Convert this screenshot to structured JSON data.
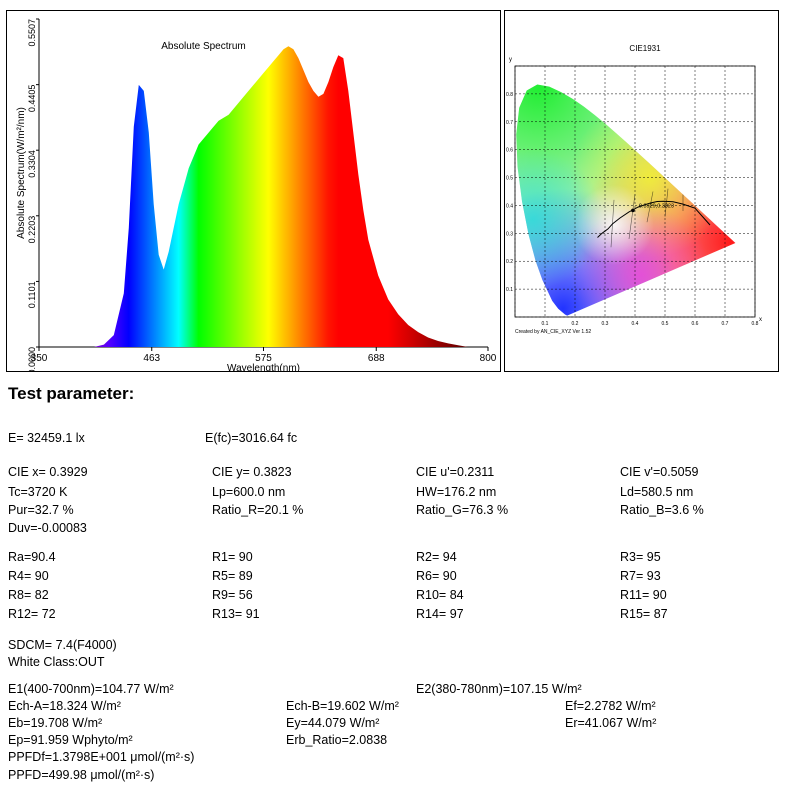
{
  "chart_data": [
    {
      "type": "area",
      "title": "Absolute Spectrum",
      "xlabel": "Wavelength(nm)",
      "ylabel": "Absolute Spectrum(W/m²/nm)",
      "xlim": [
        350,
        800
      ],
      "ylim": [
        0,
        0.5507
      ],
      "x_ticks": [
        "350",
        "463",
        "575",
        "688",
        "800"
      ],
      "y_ticks": [
        "0.0000",
        "0.1101",
        "0.2203",
        "0.3304",
        "0.4405",
        "0.5507"
      ],
      "series": [
        {
          "x": [
            405,
            415,
            425,
            435,
            440,
            445,
            450,
            455,
            460,
            465,
            470,
            475,
            480,
            485,
            490,
            495,
            500,
            510,
            520,
            530,
            540,
            550,
            560,
            570,
            575,
            580,
            585,
            590,
            595,
            600,
            605,
            610,
            615,
            620,
            625,
            630,
            635,
            640,
            645,
            650,
            655,
            660,
            665,
            670,
            675,
            680,
            690,
            700,
            710,
            720,
            730,
            740,
            750,
            760,
            770,
            780
          ],
          "y": [
            0.0,
            0.004,
            0.02,
            0.09,
            0.2,
            0.37,
            0.44,
            0.43,
            0.36,
            0.24,
            0.155,
            0.13,
            0.16,
            0.2,
            0.24,
            0.27,
            0.3,
            0.34,
            0.36,
            0.38,
            0.39,
            0.41,
            0.43,
            0.45,
            0.46,
            0.47,
            0.48,
            0.49,
            0.5,
            0.505,
            0.5,
            0.485,
            0.465,
            0.445,
            0.43,
            0.42,
            0.425,
            0.445,
            0.47,
            0.49,
            0.485,
            0.43,
            0.36,
            0.29,
            0.23,
            0.18,
            0.12,
            0.08,
            0.055,
            0.037,
            0.025,
            0.016,
            0.01,
            0.006,
            0.003,
            0.0
          ]
        }
      ]
    },
    {
      "type": "scatter",
      "title": "CIE1931",
      "xlabel": "x",
      "ylabel": "y",
      "xlim": [
        0,
        0.8
      ],
      "ylim": [
        0,
        0.9
      ],
      "x_ticks": [
        "0.1",
        "0.2",
        "0.3",
        "0.4",
        "0.5",
        "0.6",
        "0.7",
        "0.8"
      ],
      "y_ticks": [
        "0.1",
        "0.2",
        "0.3",
        "0.4",
        "0.5",
        "0.6",
        "0.7",
        "0.8"
      ],
      "point": {
        "x": 0.3929,
        "y": 0.3823
      },
      "point_label": "0.3929,0.3823",
      "footer": "Created by AN_CIE_XYZ Ver 1.52"
    }
  ],
  "heading": "Test parameter:",
  "params": {
    "e": "E=  32459.1 lx",
    "efc": "E(fc)=3016.64 fc",
    "ciex": "CIE x= 0.3929",
    "ciey": "CIE y= 0.3823",
    "cieu": "CIE u'=0.2311",
    "ciev": "CIE v'=0.5059",
    "tc": "Tc=3720 K",
    "lp": "Lp=600.0 nm",
    "hw": "HW=176.2 nm",
    "ld": "Ld=580.5 nm",
    "pur": "Pur=32.7 %",
    "ratio_r": "Ratio_R=20.1 %",
    "ratio_g": "Ratio_G=76.3 %",
    "ratio_b": "Ratio_B=3.6 %",
    "duv": "Duv=-0.00083",
    "ra": "Ra=90.4",
    "r1": "R1= 90",
    "r2": "R2= 94",
    "r3": "R3= 95",
    "r4": "R4= 90",
    "r5": "R5= 89",
    "r6": "R6= 90",
    "r7": "R7= 93",
    "r8": "R8= 82",
    "r9": "R9= 56",
    "r10": "R10= 84",
    "r11": "R11= 90",
    "r12": "R12= 72",
    "r13": "R13= 91",
    "r14": "R14= 97",
    "r15": "R15= 87",
    "sdcm": "SDCM= 7.4(F4000)",
    "white_class": "White Class:OUT",
    "e1": "E1(400-700nm)=104.77 W/m²",
    "e2": "E2(380-780nm)=107.15 W/m²",
    "ech_a": "Ech-A=18.324 W/m²",
    "ech_b": "Ech-B=19.602 W/m²",
    "ef": "Ef=2.2782 W/m²",
    "eb": "Eb=19.708 W/m²",
    "ey": "Ey=44.079 W/m²",
    "er": "Er=41.067 W/m²",
    "ep": "Ep=91.959 Wphyto/m²",
    "erb": "Erb_Ratio=2.0838",
    "ppfdf": "PPFDf=1.3798E+001 μmol/(m²·s)",
    "ppfd": "PPFD=499.98 μmol/(m²·s)"
  }
}
